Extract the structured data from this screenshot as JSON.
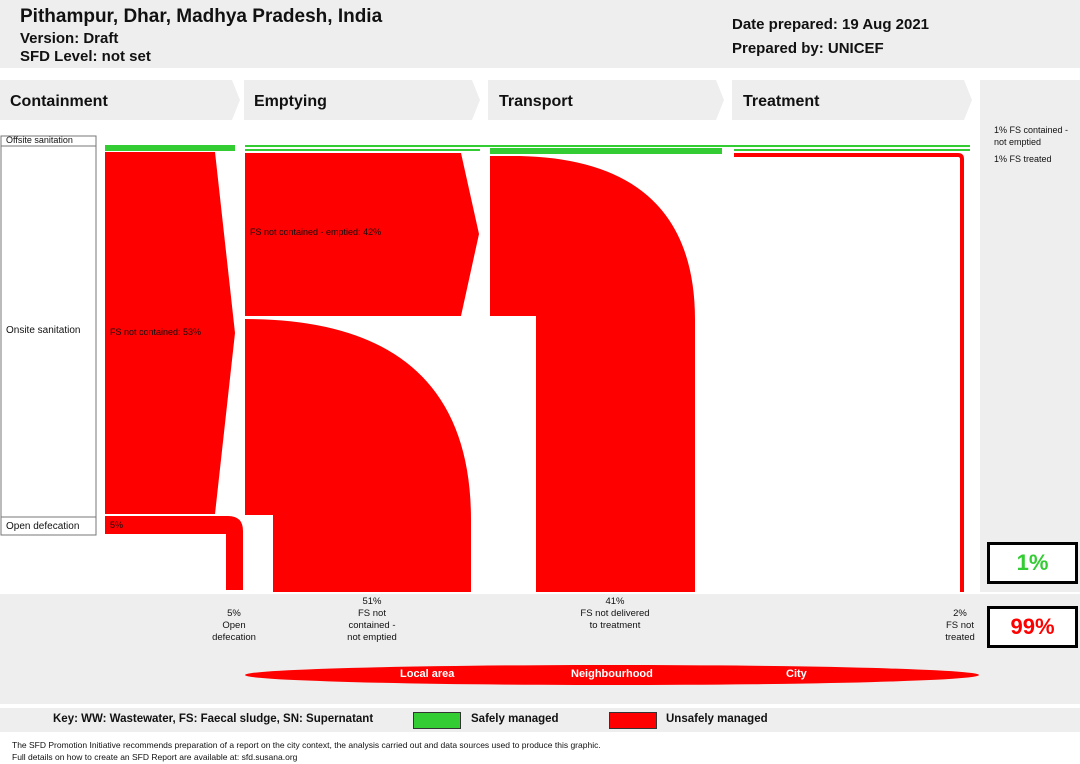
{
  "header": {
    "title": "Pithampur, Dhar, Madhya Pradesh, India",
    "version": "Version: Draft",
    "sfd_level": "SFD Level: not set",
    "date_prepared": "Date prepared: 19 Aug 2021",
    "prepared_by": "Prepared by: UNICEF"
  },
  "stages": [
    "Containment",
    "Emptying",
    "Transport",
    "Treatment"
  ],
  "rows": {
    "offsite": "Offsite sanitation",
    "onsite": "Onsite sanitation",
    "open_defecation": "Open defecation"
  },
  "flow_labels": {
    "not_contained": "FS not contained: 53%",
    "not_contained_emptied": "FS not contained - emptied: 42%",
    "open_def_pct": "5%"
  },
  "right_notes": {
    "contained_not_emptied": "1% FS contained - not emptied",
    "treated": "1% FS treated"
  },
  "outcomes": {
    "safe_pct": "1%",
    "unsafe_pct": "99%"
  },
  "bottom_labels": [
    {
      "pct": "5%",
      "text": "Open defecation"
    },
    {
      "pct": "51%",
      "text": "FS not contained - not emptied"
    },
    {
      "pct": "41%",
      "text": "FS not delivered to treatment"
    },
    {
      "pct": "2%",
      "text": "FS not treated"
    }
  ],
  "areas": [
    "Local area",
    "Neighbourhood",
    "City"
  ],
  "key": {
    "text": "Key: WW: Wastewater, FS: Faecal sludge, SN: Supernatant",
    "safe": "Safely managed",
    "unsafe": "Unsafely managed"
  },
  "colors": {
    "safe": "#33cc33",
    "unsafe": "#ff0000",
    "panel": "#eeeeee"
  },
  "footer": {
    "line1": "The SFD Promotion Initiative recommends preparation of a report on the city context, the analysis carried out and data sources used to produce this graphic.",
    "line2": "Full details on how to create an SFD Report are available at: sfd.susana.org"
  }
}
